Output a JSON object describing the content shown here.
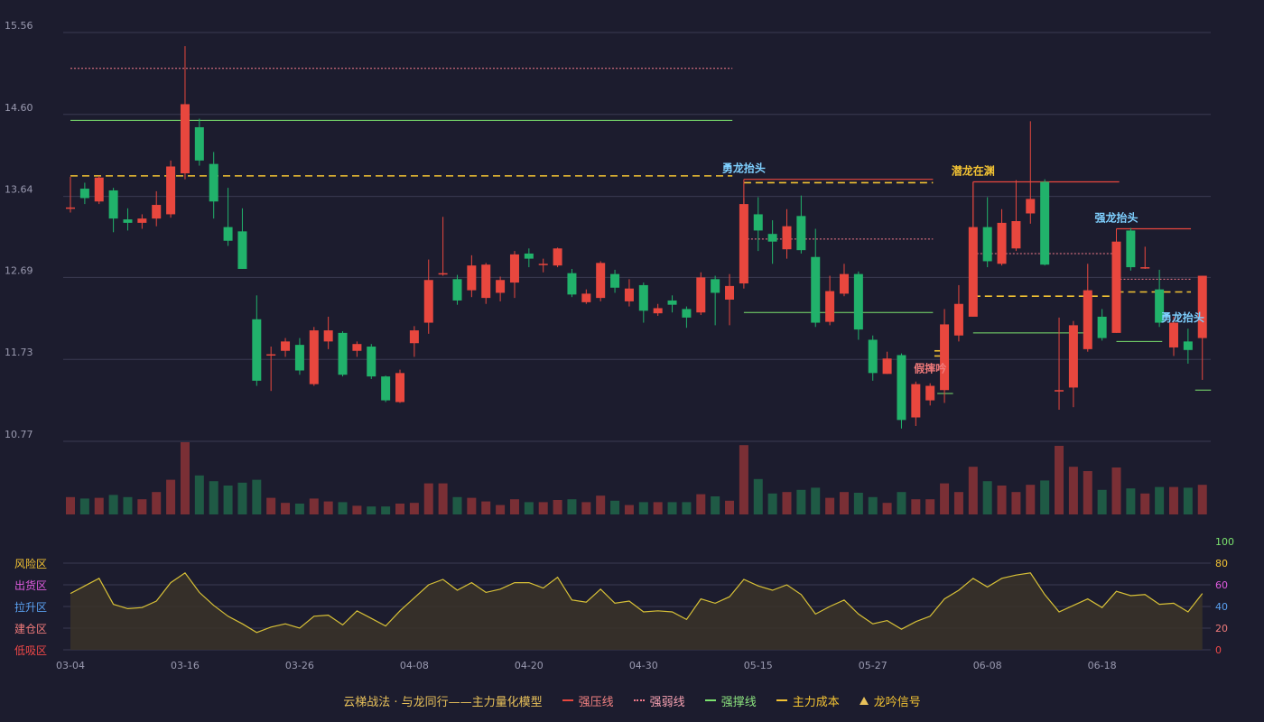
{
  "chart_data": {
    "type": "candlestick",
    "title": "云梯战法 · 与龙同行——主力量化模型",
    "price_axis": {
      "ticks": [
        15.56,
        14.6,
        13.64,
        12.69,
        11.73,
        10.77
      ],
      "range": [
        10.77,
        15.56
      ]
    },
    "indicator_axis": {
      "ticks": [
        100,
        80,
        60,
        40,
        20,
        0
      ],
      "range": [
        0,
        100
      ]
    },
    "zones": [
      "风险区",
      "出货区",
      "拉升区",
      "建仓区",
      "低吸区"
    ],
    "x_tick_labels": [
      {
        "i": 0,
        "label": "03-04"
      },
      {
        "i": 8,
        "label": "03-16"
      },
      {
        "i": 16,
        "label": "03-26"
      },
      {
        "i": 24,
        "label": "04-08"
      },
      {
        "i": 32,
        "label": "04-20"
      },
      {
        "i": 40,
        "label": "04-30"
      },
      {
        "i": 48,
        "label": "05-15"
      },
      {
        "i": 56,
        "label": "05-27"
      },
      {
        "i": 64,
        "label": "06-08"
      },
      {
        "i": 72,
        "label": "06-18"
      }
    ],
    "candles": [
      [
        13.51,
        13.51,
        13.87,
        13.45
      ],
      [
        13.73,
        13.62,
        13.8,
        13.55
      ],
      [
        13.58,
        13.86,
        13.88,
        13.55
      ],
      [
        13.71,
        13.38,
        13.74,
        13.22
      ],
      [
        13.37,
        13.33,
        13.5,
        13.24
      ],
      [
        13.33,
        13.38,
        13.43,
        13.26
      ],
      [
        13.38,
        13.54,
        13.7,
        13.29
      ],
      [
        13.43,
        13.99,
        14.06,
        13.39
      ],
      [
        13.91,
        14.72,
        15.4,
        13.84
      ],
      [
        14.45,
        14.06,
        14.55,
        14.0
      ],
      [
        14.02,
        13.58,
        14.16,
        13.38
      ],
      [
        13.28,
        13.12,
        13.74,
        13.06
      ],
      [
        13.23,
        12.79,
        13.5,
        12.79
      ],
      [
        12.2,
        11.48,
        12.48,
        11.42
      ],
      [
        11.79,
        11.79,
        11.88,
        11.36
      ],
      [
        11.83,
        11.94,
        11.98,
        11.76
      ],
      [
        11.9,
        11.6,
        11.98,
        11.55
      ],
      [
        11.44,
        12.07,
        12.11,
        11.42
      ],
      [
        11.94,
        12.07,
        12.23,
        11.85
      ],
      [
        12.04,
        11.55,
        12.06,
        11.53
      ],
      [
        11.83,
        11.91,
        11.94,
        11.76
      ],
      [
        11.88,
        11.53,
        11.91,
        11.5
      ],
      [
        11.53,
        11.25,
        11.54,
        11.23
      ],
      [
        11.23,
        11.57,
        11.61,
        11.22
      ],
      [
        11.92,
        12.07,
        12.12,
        11.76
      ],
      [
        12.16,
        12.66,
        12.9,
        12.03
      ],
      [
        12.74,
        12.74,
        13.4,
        12.71
      ],
      [
        12.67,
        12.42,
        12.72,
        12.37
      ],
      [
        12.54,
        12.83,
        12.95,
        12.46
      ],
      [
        12.45,
        12.84,
        12.86,
        12.38
      ],
      [
        12.51,
        12.66,
        12.7,
        12.41
      ],
      [
        12.63,
        12.96,
        13.0,
        12.45
      ],
      [
        12.97,
        12.91,
        13.03,
        12.81
      ],
      [
        12.85,
        12.85,
        12.91,
        12.75
      ],
      [
        12.83,
        13.03,
        13.04,
        12.81
      ],
      [
        12.74,
        12.49,
        12.79,
        12.46
      ],
      [
        12.4,
        12.5,
        12.55,
        12.38
      ],
      [
        12.45,
        12.86,
        12.88,
        12.41
      ],
      [
        12.73,
        12.57,
        12.78,
        12.51
      ],
      [
        12.41,
        12.56,
        12.67,
        12.35
      ],
      [
        12.6,
        12.3,
        12.63,
        12.16
      ],
      [
        12.27,
        12.33,
        12.38,
        12.24
      ],
      [
        12.42,
        12.37,
        12.48,
        12.28
      ],
      [
        12.32,
        12.22,
        12.35,
        12.1
      ],
      [
        12.28,
        12.69,
        12.75,
        12.25
      ],
      [
        12.67,
        12.51,
        12.71,
        12.13
      ],
      [
        12.43,
        12.59,
        12.73,
        12.13
      ],
      [
        12.62,
        13.55,
        13.62,
        12.56
      ],
      [
        13.43,
        13.24,
        13.63,
        13.0
      ],
      [
        13.2,
        13.11,
        13.36,
        12.85
      ],
      [
        13.02,
        13.29,
        13.49,
        12.91
      ],
      [
        13.41,
        13.01,
        13.65,
        12.97
      ],
      [
        12.93,
        12.16,
        13.26,
        12.11
      ],
      [
        12.17,
        12.53,
        12.71,
        12.13
      ],
      [
        12.5,
        12.73,
        12.85,
        12.47
      ],
      [
        12.73,
        12.08,
        12.76,
        11.96
      ],
      [
        11.96,
        11.57,
        12.01,
        11.48
      ],
      [
        11.56,
        11.74,
        11.82,
        11.56
      ],
      [
        11.78,
        11.02,
        11.8,
        10.92
      ],
      [
        11.05,
        11.44,
        11.47,
        10.95
      ],
      [
        11.25,
        11.42,
        11.45,
        11.19
      ],
      [
        11.37,
        12.14,
        12.32,
        11.22
      ],
      [
        12.01,
        12.38,
        12.6,
        11.94
      ],
      [
        12.23,
        13.28,
        13.81,
        12.23
      ],
      [
        13.28,
        12.88,
        13.63,
        12.81
      ],
      [
        12.85,
        13.33,
        13.49,
        12.83
      ],
      [
        13.03,
        13.35,
        13.83,
        13.0
      ],
      [
        13.44,
        13.61,
        14.52,
        13.32
      ],
      [
        13.81,
        12.84,
        13.84,
        12.83
      ],
      [
        11.37,
        11.37,
        12.22,
        11.14
      ],
      [
        11.4,
        12.13,
        12.18,
        11.17
      ],
      [
        11.85,
        12.54,
        12.85,
        11.82
      ],
      [
        12.23,
        11.98,
        12.32,
        11.95
      ],
      [
        12.04,
        13.11,
        13.18,
        12.04
      ],
      [
        13.24,
        12.81,
        13.27,
        12.77
      ],
      [
        12.8,
        12.81,
        13.05,
        12.79
      ],
      [
        12.55,
        12.16,
        12.78,
        12.11
      ],
      [
        11.87,
        12.16,
        12.23,
        11.77
      ],
      [
        11.94,
        11.84,
        12.09,
        11.68
      ],
      [
        11.98,
        12.71,
        12.71,
        11.49
      ]
    ],
    "volume": [
      24,
      22,
      23,
      27,
      24,
      21,
      31,
      48,
      100,
      54,
      46,
      40,
      44,
      48,
      23,
      16,
      15,
      22,
      18,
      17,
      12,
      11,
      11,
      15,
      16,
      43,
      43,
      24,
      23,
      18,
      13,
      21,
      17,
      17,
      20,
      21,
      17,
      26,
      19,
      13,
      17,
      17,
      17,
      17,
      28,
      25,
      19,
      96,
      49,
      29,
      31,
      34,
      37,
      23,
      31,
      30,
      24,
      16,
      31,
      21,
      21,
      43,
      31,
      66,
      46,
      40,
      31,
      41,
      47,
      95,
      66,
      60,
      34,
      65,
      36,
      29,
      38,
      38,
      37,
      41
    ],
    "indicator": [
      52,
      59,
      66,
      42,
      38,
      39,
      45,
      62,
      71,
      53,
      41,
      31,
      24,
      16,
      21,
      24,
      20,
      31,
      32,
      23,
      36,
      29,
      22,
      36,
      48,
      60,
      65,
      55,
      62,
      53,
      56,
      62,
      62,
      57,
      67,
      46,
      44,
      56,
      43,
      45,
      35,
      36,
      35,
      28,
      47,
      43,
      49,
      65,
      59,
      55,
      60,
      51,
      33,
      40,
      46,
      33,
      24,
      27,
      19,
      26,
      31,
      47,
      55,
      66,
      58,
      66,
      69,
      71,
      51,
      35,
      41,
      47,
      39,
      54,
      50,
      51,
      42,
      43,
      35,
      52
    ],
    "lines": {
      "strong_pressure": [
        {
          "y": 13.84,
          "from": 47,
          "to": 60.2
        },
        {
          "y": 13.81,
          "from": 63,
          "to": 73.2
        },
        {
          "y": 13.26,
          "from": 73,
          "to": 78.2
        }
      ],
      "strong_weak": [
        {
          "y": 15.14,
          "from": 0,
          "to": 46.2
        },
        {
          "y": 13.14,
          "from": 47,
          "to": 60.2
        },
        {
          "y": 12.97,
          "from": 63,
          "to": 73.2
        },
        {
          "y": 12.67,
          "from": 73,
          "to": 78.2
        }
      ],
      "support": [
        {
          "y": 14.53,
          "from": 0,
          "to": 46.2
        },
        {
          "y": 12.28,
          "from": 47,
          "to": 60.2
        },
        {
          "y": 11.33,
          "from": 60.5,
          "to": 61.6
        },
        {
          "y": 12.04,
          "from": 63,
          "to": 71.2
        },
        {
          "y": 11.94,
          "from": 73,
          "to": 76.2
        },
        {
          "y": 11.37,
          "from": 78.5,
          "to": 79.6
        }
      ],
      "main_cost": [
        {
          "y": 13.88,
          "from": 0,
          "to": 46.2
        },
        {
          "y": 13.8,
          "from": 47,
          "to": 60.2
        },
        {
          "y": 11.83,
          "from": 60.3,
          "to": 60.8
        },
        {
          "y": 11.77,
          "from": 60.3,
          "to": 60.8
        },
        {
          "y": 12.47,
          "from": 63,
          "to": 73.2
        },
        {
          "y": 12.52,
          "from": 73,
          "to": 78.2
        }
      ]
    },
    "signals": [
      {
        "i": 47,
        "label": "勇龙抬头",
        "kind": "blue"
      },
      {
        "i": 63,
        "label": "潜龙在渊",
        "kind": "gold"
      },
      {
        "i": 73,
        "label": "强龙抬头",
        "kind": "blue"
      },
      {
        "i": 60,
        "label": "假摔吟",
        "kind": "red"
      },
      {
        "i": 78,
        "label": "勇龙抬头",
        "kind": "blue"
      }
    ]
  },
  "legend": {
    "title": "云梯战法 · 与龙同行——主力量化模型",
    "strong_pressure": "强压线",
    "strong_weak": "强弱线",
    "support": "强撑线",
    "main_cost": "主力成本",
    "signal": "龙吟信号"
  },
  "colors": {
    "up": "#e8473e",
    "down": "#21b26b",
    "bg": "#1c1c2e",
    "grid": "#3a3a52",
    "pressure": "#e8473e",
    "weak": "#f27a8a",
    "support": "#7be26e",
    "cost": "#f2c233",
    "indicator": "#d8c137",
    "signal_blue": "#7fd0ff",
    "signal_gold": "#f2c233",
    "signal_red": "#f07a7a"
  }
}
